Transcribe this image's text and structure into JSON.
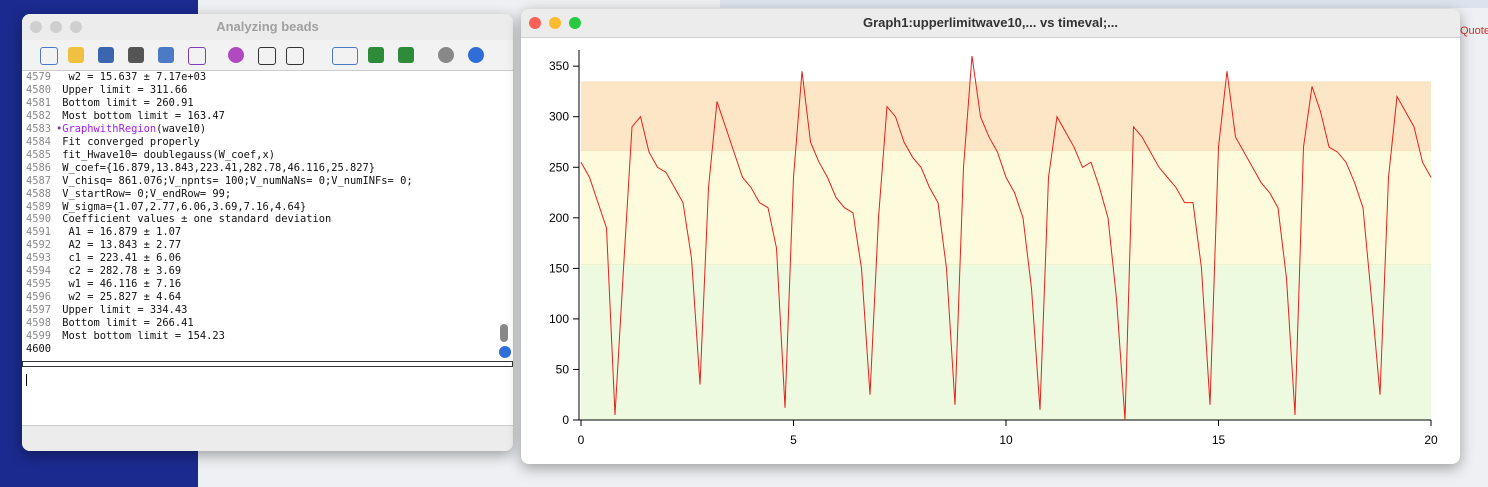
{
  "background": {
    "snippet": "Quote"
  },
  "command_window": {
    "title": "Analyzing beads",
    "lines": [
      {
        "num": 4579,
        "text": "  w2 = 15.637 ± 7.17e+03"
      },
      {
        "num": 4580,
        "text": " Upper limit = 311.66"
      },
      {
        "num": 4581,
        "text": " Bottom limit = 260.91"
      },
      {
        "num": 4582,
        "text": " Most bottom limit = 163.47"
      },
      {
        "num": 4583,
        "parts": [
          "•",
          "GraphwithRegion",
          "(wave10)"
        ]
      },
      {
        "num": 4584,
        "text": " Fit converged properly"
      },
      {
        "num": 4585,
        "text": " fit_Hwave10= doublegauss(W_coef,x)"
      },
      {
        "num": 4586,
        "text": " W_coef={16.879,13.843,223.41,282.78,46.116,25.827}"
      },
      {
        "num": 4587,
        "text": " V_chisq= 861.076;V_npnts= 100;V_numNaNs= 0;V_numINFs= 0;"
      },
      {
        "num": 4588,
        "text": " V_startRow= 0;V_endRow= 99;"
      },
      {
        "num": 4589,
        "text": " W_sigma={1.07,2.77,6.06,3.69,7.16,4.64}"
      },
      {
        "num": 4590,
        "text": " Coefficient values ± one standard deviation"
      },
      {
        "num": 4591,
        "text": "  A1 = 16.879 ± 1.07"
      },
      {
        "num": 4592,
        "text": "  A2 = 13.843 ± 2.77"
      },
      {
        "num": 4593,
        "text": "  c1 = 223.41 ± 6.06"
      },
      {
        "num": 4594,
        "text": "  c2 = 282.78 ± 3.69"
      },
      {
        "num": 4595,
        "text": "  w1 = 46.116 ± 7.16"
      },
      {
        "num": 4596,
        "text": "  w2 = 25.827 ± 4.64"
      },
      {
        "num": 4597,
        "text": " Upper limit = 334.43"
      },
      {
        "num": 4598,
        "text": " Bottom limit = 266.41"
      },
      {
        "num": 4599,
        "text": " Most bottom limit = 154.23"
      },
      {
        "num": 4600
      }
    ]
  },
  "graph_window": {
    "title": "Graph1:upperlimitwave10,... vs timeval;..."
  },
  "chart_data": {
    "type": "line",
    "color": "#e8201a",
    "xlim": [
      0,
      20
    ],
    "ylim": [
      0,
      366
    ],
    "xticks": [
      0,
      5,
      10,
      15,
      20
    ],
    "yticks": [
      0,
      50,
      100,
      150,
      200,
      250,
      300,
      350
    ],
    "bands": [
      {
        "from": 0,
        "to": 154.23,
        "color": "#eefadf"
      },
      {
        "from": 154.23,
        "to": 266.41,
        "color": "#fefbdc"
      },
      {
        "from": 266.41,
        "to": 334.43,
        "color": "#fde6c6"
      }
    ],
    "x": [
      0,
      0.2,
      0.4,
      0.6,
      0.8,
      1,
      1.2,
      1.4,
      1.6,
      1.8,
      2,
      2.2,
      2.4,
      2.6,
      2.8,
      3,
      3.2,
      3.4,
      3.6,
      3.8,
      4,
      4.2,
      4.4,
      4.6,
      4.8,
      5,
      5.2,
      5.4,
      5.6,
      5.8,
      6,
      6.2,
      6.4,
      6.6,
      6.8,
      7,
      7.2,
      7.4,
      7.6,
      7.8,
      8,
      8.2,
      8.4,
      8.6,
      8.8,
      9,
      9.2,
      9.4,
      9.6,
      9.8,
      10,
      10.2,
      10.4,
      10.6,
      10.8,
      11,
      11.2,
      11.4,
      11.6,
      11.8,
      12,
      12.2,
      12.4,
      12.6,
      12.8,
      13,
      13.2,
      13.4,
      13.6,
      13.8,
      14,
      14.2,
      14.4,
      14.6,
      14.8,
      15,
      15.2,
      15.4,
      15.6,
      15.8,
      16,
      16.2,
      16.4,
      16.6,
      16.8,
      17,
      17.2,
      17.4,
      17.6,
      17.8,
      18,
      18.2,
      18.4,
      18.6,
      18.8,
      19,
      19.2,
      19.4,
      19.6,
      19.8,
      20
    ],
    "values": [
      255,
      240,
      215,
      190,
      5,
      150,
      290,
      300,
      265,
      250,
      245,
      230,
      215,
      160,
      35,
      230,
      315,
      290,
      265,
      240,
      230,
      215,
      210,
      170,
      12,
      240,
      345,
      275,
      255,
      240,
      220,
      210,
      205,
      150,
      25,
      200,
      310,
      300,
      275,
      260,
      250,
      230,
      215,
      150,
      15,
      250,
      360,
      300,
      280,
      265,
      240,
      225,
      200,
      130,
      10,
      240,
      300,
      285,
      270,
      250,
      255,
      230,
      200,
      120,
      0,
      290,
      280,
      265,
      250,
      240,
      230,
      215,
      215,
      150,
      15,
      270,
      345,
      280,
      265,
      250,
      235,
      225,
      210,
      140,
      5,
      270,
      330,
      305,
      270,
      265,
      255,
      235,
      210,
      120,
      25,
      240,
      320,
      305,
      290,
      255,
      240
    ]
  }
}
